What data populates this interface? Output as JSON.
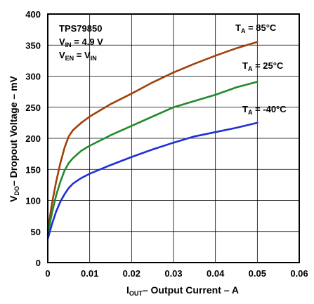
{
  "chart_data": {
    "type": "line",
    "title": "",
    "xlabel": {
      "main": "I",
      "sub": "OUT",
      "rest": "– Output Current – A"
    },
    "ylabel": {
      "main": "V",
      "sub": "DO",
      "rest": "– Dropout Voltage – mV"
    },
    "xlim": [
      0,
      0.06
    ],
    "ylim": [
      0,
      400
    ],
    "x_ticks": [
      "0",
      "0.01",
      "0.02",
      "0.03",
      "0.04",
      "0.05",
      "0.06"
    ],
    "y_ticks": [
      "0",
      "50",
      "100",
      "150",
      "200",
      "250",
      "300",
      "350",
      "400"
    ],
    "grid": true,
    "conditions": {
      "part": "TPS79850",
      "vin": {
        "main": "V",
        "sub": "IN",
        "rest": " = 4.9 V"
      },
      "ven": {
        "main": "V",
        "sub": "EN",
        "rest": " = V",
        "sub2": "IN"
      }
    },
    "series": [
      {
        "name": "T_A = 85°C",
        "label": {
          "main": "T",
          "sub": "A",
          "rest": " = 85°C"
        },
        "color": "#a0400a",
        "x": [
          0,
          0.001,
          0.002,
          0.003,
          0.004,
          0.005,
          0.006,
          0.008,
          0.01,
          0.015,
          0.02,
          0.025,
          0.03,
          0.035,
          0.04,
          0.045,
          0.05
        ],
        "y": [
          52,
          95,
          130,
          160,
          185,
          203,
          213,
          225,
          235,
          255,
          272,
          290,
          306,
          320,
          333,
          345,
          355
        ]
      },
      {
        "name": "T_A = 25°C",
        "label": {
          "main": "T",
          "sub": "A",
          "rest": " = 25°C"
        },
        "color": "#218a2a",
        "x": [
          0,
          0.001,
          0.002,
          0.003,
          0.004,
          0.005,
          0.006,
          0.008,
          0.01,
          0.015,
          0.02,
          0.025,
          0.03,
          0.035,
          0.04,
          0.045,
          0.05
        ],
        "y": [
          45,
          80,
          108,
          130,
          148,
          160,
          168,
          180,
          188,
          205,
          220,
          235,
          250,
          260,
          270,
          282,
          291
        ]
      },
      {
        "name": "T_A = -40°C",
        "label": {
          "main": "T",
          "sub": "A",
          "rest": " = -40°C"
        },
        "color": "#1f2fd6",
        "x": [
          0,
          0.001,
          0.002,
          0.003,
          0.004,
          0.005,
          0.006,
          0.008,
          0.01,
          0.015,
          0.02,
          0.025,
          0.03,
          0.035,
          0.04,
          0.045,
          0.05
        ],
        "y": [
          38,
          62,
          82,
          98,
          110,
          120,
          127,
          136,
          143,
          157,
          170,
          182,
          193,
          203,
          210,
          217,
          225
        ]
      }
    ]
  }
}
